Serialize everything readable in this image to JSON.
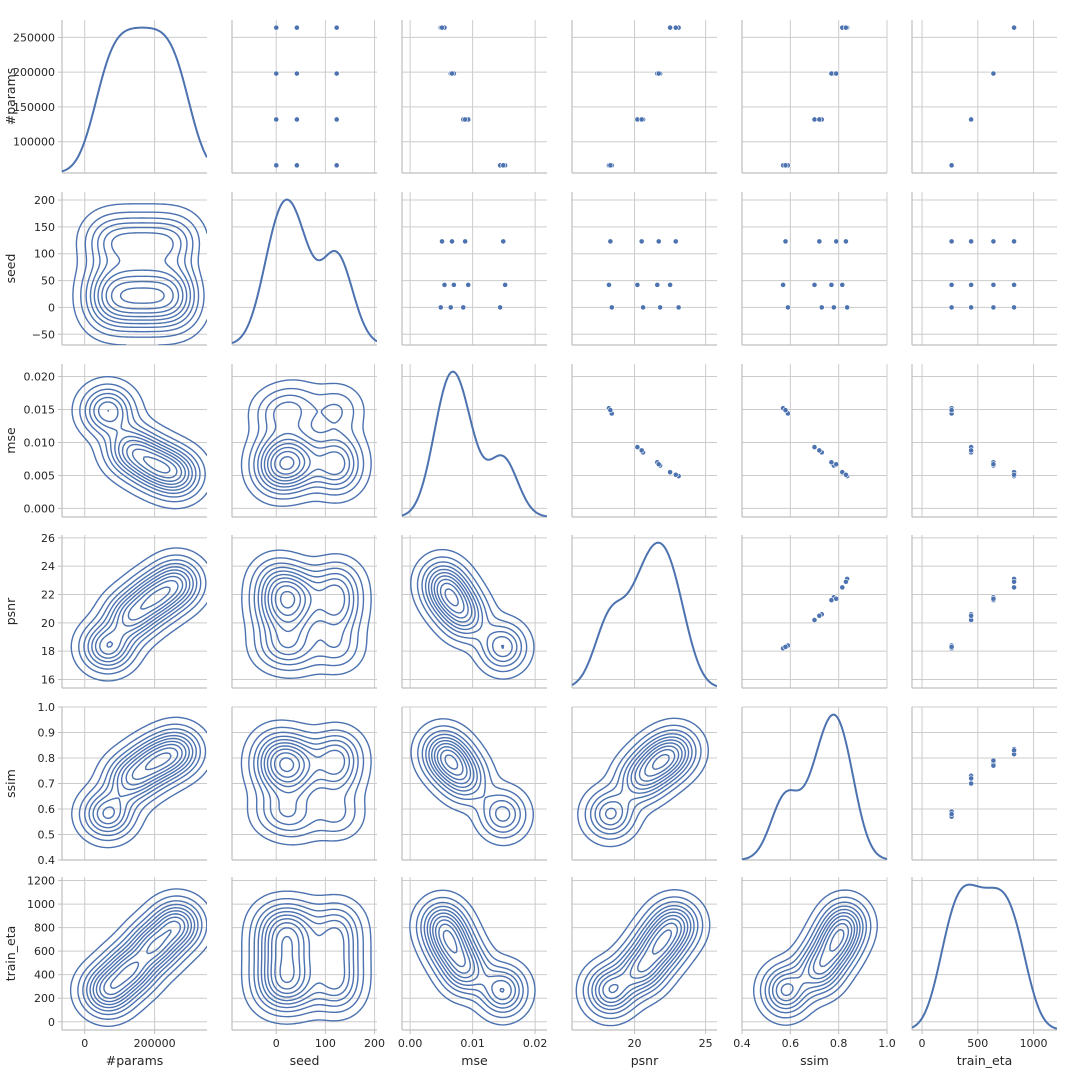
{
  "chart_data": {
    "type": "pairplot",
    "variables": [
      "#params",
      "seed",
      "mse",
      "psnr",
      "ssim",
      "train_eta"
    ],
    "upper": "scatter",
    "lower": "kde-contour",
    "diagonal": "kde",
    "grid": true,
    "colors": {
      "series": "#4c72b0",
      "grid": "#cccccc",
      "spine": "#bfbfbf",
      "text": "#262626",
      "background": "#ffffff"
    },
    "axes": [
      {
        "name": "#params",
        "label": "#params",
        "lim": [
          -65000,
          350000
        ],
        "ticks": [
          0,
          200000
        ],
        "tick_labels": [
          "0",
          "200000"
        ],
        "row_lim": [
          55000,
          275000
        ],
        "row_ticks": [
          100000,
          150000,
          200000,
          250000
        ],
        "row_tick_labels": [
          "100000",
          "150000",
          "200000",
          "250000"
        ]
      },
      {
        "name": "seed",
        "label": "seed",
        "lim": [
          -90,
          205
        ],
        "ticks": [
          0,
          100,
          200
        ],
        "tick_labels": [
          "0",
          "100",
          "200"
        ],
        "row_lim": [
          -70,
          215
        ],
        "row_ticks": [
          -50,
          0,
          50,
          100,
          150,
          200
        ],
        "row_tick_labels": [
          "−50",
          "0",
          "50",
          "100",
          "150",
          "200"
        ]
      },
      {
        "name": "mse",
        "label": "mse",
        "lim": [
          -0.0013,
          0.0219
        ],
        "ticks": [
          0.0,
          0.01,
          0.02
        ],
        "tick_labels": [
          "0.00",
          "0.01",
          "0.02"
        ],
        "row_lim": [
          -0.0013,
          0.0219
        ],
        "row_ticks": [
          0.0,
          0.005,
          0.01,
          0.015,
          0.02
        ],
        "row_tick_labels": [
          "0.000",
          "0.005",
          "0.010",
          "0.015",
          "0.020"
        ]
      },
      {
        "name": "psnr",
        "label": "psnr",
        "lim": [
          15.6,
          25.8
        ],
        "ticks": [
          20,
          25
        ],
        "tick_labels": [
          "20",
          "25"
        ],
        "row_lim": [
          15.4,
          26.2
        ],
        "row_ticks": [
          16,
          18,
          20,
          22,
          24,
          26
        ],
        "row_tick_labels": [
          "16",
          "18",
          "20",
          "22",
          "24",
          "26"
        ]
      },
      {
        "name": "ssim",
        "label": "ssim",
        "lim": [
          0.4,
          1.0
        ],
        "ticks": [
          0.4,
          0.6,
          0.8,
          1.0
        ],
        "tick_labels": [
          "0.4",
          "0.6",
          "0.8",
          "1.0"
        ],
        "row_lim": [
          0.4,
          1.0
        ],
        "row_ticks": [
          0.4,
          0.5,
          0.6,
          0.7,
          0.8,
          0.9,
          1.0
        ],
        "row_tick_labels": [
          "0.4",
          "0.5",
          "0.6",
          "0.7",
          "0.8",
          "0.9",
          "1.0"
        ]
      },
      {
        "name": "train_eta",
        "label": "train_eta",
        "lim": [
          -90,
          1210
        ],
        "ticks": [
          0,
          500,
          1000
        ],
        "tick_labels": [
          "0",
          "500",
          "1000"
        ],
        "row_lim": [
          -70,
          1230
        ],
        "row_ticks": [
          0,
          200,
          400,
          600,
          800,
          1000,
          1200
        ],
        "row_tick_labels": [
          "0",
          "200",
          "400",
          "600",
          "800",
          "1000",
          "1200"
        ]
      }
    ],
    "points": [
      {
        "params": 66000,
        "seed": 0,
        "mse": 0.0144,
        "psnr": 18.4,
        "ssim": 0.59,
        "train_eta": 265
      },
      {
        "params": 66000,
        "seed": 42,
        "mse": 0.0152,
        "psnr": 18.2,
        "ssim": 0.57,
        "train_eta": 265
      },
      {
        "params": 66000,
        "seed": 123,
        "mse": 0.0149,
        "psnr": 18.3,
        "ssim": 0.58,
        "train_eta": 265
      },
      {
        "params": 132000,
        "seed": 0,
        "mse": 0.0085,
        "psnr": 20.6,
        "ssim": 0.73,
        "train_eta": 440
      },
      {
        "params": 132000,
        "seed": 42,
        "mse": 0.0093,
        "psnr": 20.2,
        "ssim": 0.7,
        "train_eta": 440
      },
      {
        "params": 132000,
        "seed": 123,
        "mse": 0.0088,
        "psnr": 20.5,
        "ssim": 0.72,
        "train_eta": 440
      },
      {
        "params": 198000,
        "seed": 0,
        "mse": 0.0065,
        "psnr": 21.8,
        "ssim": 0.78,
        "train_eta": 640
      },
      {
        "params": 198000,
        "seed": 42,
        "mse": 0.007,
        "psnr": 21.6,
        "ssim": 0.77,
        "train_eta": 640
      },
      {
        "params": 198000,
        "seed": 123,
        "mse": 0.0067,
        "psnr": 21.7,
        "ssim": 0.79,
        "train_eta": 640
      },
      {
        "params": 264000,
        "seed": 0,
        "mse": 0.0049,
        "psnr": 23.1,
        "ssim": 0.835,
        "train_eta": 825
      },
      {
        "params": 264000,
        "seed": 42,
        "mse": 0.0055,
        "psnr": 22.5,
        "ssim": 0.815,
        "train_eta": 825
      },
      {
        "params": 264000,
        "seed": 123,
        "mse": 0.0051,
        "psnr": 22.9,
        "ssim": 0.83,
        "train_eta": 825
      }
    ]
  }
}
